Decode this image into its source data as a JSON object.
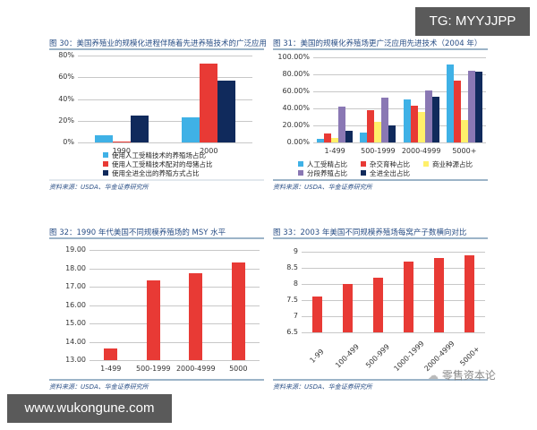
{
  "overlays": {
    "top_badge": "TG: MYYJJPP",
    "bottom_badge": "www.wukongune.com",
    "watermark": "零售资本论"
  },
  "colors": {
    "light_blue": "#3fb1e6",
    "red": "#e83a35",
    "navy": "#102a5c",
    "yellow": "#fff06a",
    "purple": "#8a78b4",
    "title_blue": "#2a4f86"
  },
  "chart_data": [
    {
      "id": "fig30",
      "type": "bar",
      "title": "图 30：美国养殖业的规模化进程伴随着先进养殖技术的广泛应用",
      "categories": [
        "1990",
        "2000"
      ],
      "series": [
        {
          "name": "使用人工受精技术的养殖场占比",
          "color": "#3fb1e6",
          "values": [
            7,
            23
          ]
        },
        {
          "name": "使用人工受精技术配对的母猪占比",
          "color": "#e83a35",
          "values": [
            1,
            73
          ]
        },
        {
          "name": "使用全进全出的养殖方式占比",
          "color": "#102a5c",
          "values": [
            25,
            57
          ]
        }
      ],
      "yticks": [
        "0%",
        "20%",
        "40%",
        "60%",
        "80%"
      ],
      "ylim": [
        0,
        80
      ],
      "legend_position": "bottom",
      "source": "资料来源：USDA、华金证券研究所"
    },
    {
      "id": "fig31",
      "type": "bar",
      "title": "图 31：美国的规模化养殖场更广泛应用先进技术（2004 年）",
      "categories": [
        "1-499",
        "500-1999",
        "2000-4999",
        "5000+"
      ],
      "series": [
        {
          "name": "人工受精占比",
          "color": "#3fb1e6",
          "values": [
            4,
            12,
            51,
            92
          ]
        },
        {
          "name": "杂交育种占比",
          "color": "#e83a35",
          "values": [
            11,
            38,
            43,
            73
          ]
        },
        {
          "name": "商业种源占比",
          "color": "#fff06a",
          "values": [
            5,
            24,
            36,
            26
          ]
        },
        {
          "name": "分段养殖占比",
          "color": "#8a78b4",
          "values": [
            42,
            53,
            61,
            84
          ]
        },
        {
          "name": "全进全出占比",
          "color": "#102a5c",
          "values": [
            14,
            20,
            54,
            83
          ]
        }
      ],
      "yticks": [
        "0.00%",
        "20.00%",
        "40.00%",
        "60.00%",
        "80.00%",
        "100.00%"
      ],
      "ylim": [
        0,
        100
      ],
      "legend_position": "bottom",
      "source": "资料来源：USDA、华金证券研究所"
    },
    {
      "id": "fig32",
      "type": "bar",
      "title": "图 32：1990 年代美国不同规模养殖场的 MSY 水平",
      "categories": [
        "1-499",
        "500-1999",
        "2000-4999",
        "5000"
      ],
      "series": [
        {
          "name": "MSY",
          "color": "#e83a35",
          "values": [
            13.65,
            17.35,
            17.75,
            18.3
          ]
        }
      ],
      "yticks": [
        "13.00",
        "14.00",
        "15.00",
        "16.00",
        "17.00",
        "18.00",
        "19.00"
      ],
      "ylim": [
        13,
        19
      ],
      "source": "资料来源：USDA、华金证券研究所"
    },
    {
      "id": "fig33",
      "type": "bar",
      "title": "图 33：2003 年美国不同规模养殖场每窝产子数横向对比",
      "categories": [
        "1-99",
        "100-499",
        "500-999",
        "1000-1999",
        "2000-4999",
        "5000+"
      ],
      "series": [
        {
          "name": "每窝产子数",
          "color": "#e83a35",
          "values": [
            7.6,
            8.0,
            8.2,
            8.7,
            8.8,
            8.9
          ]
        }
      ],
      "yticks": [
        "6.5",
        "7",
        "7.5",
        "8",
        "8.5",
        "9"
      ],
      "ylim": [
        6.5,
        9
      ],
      "source": "资料来源：USDA、华金证券研究所"
    }
  ]
}
